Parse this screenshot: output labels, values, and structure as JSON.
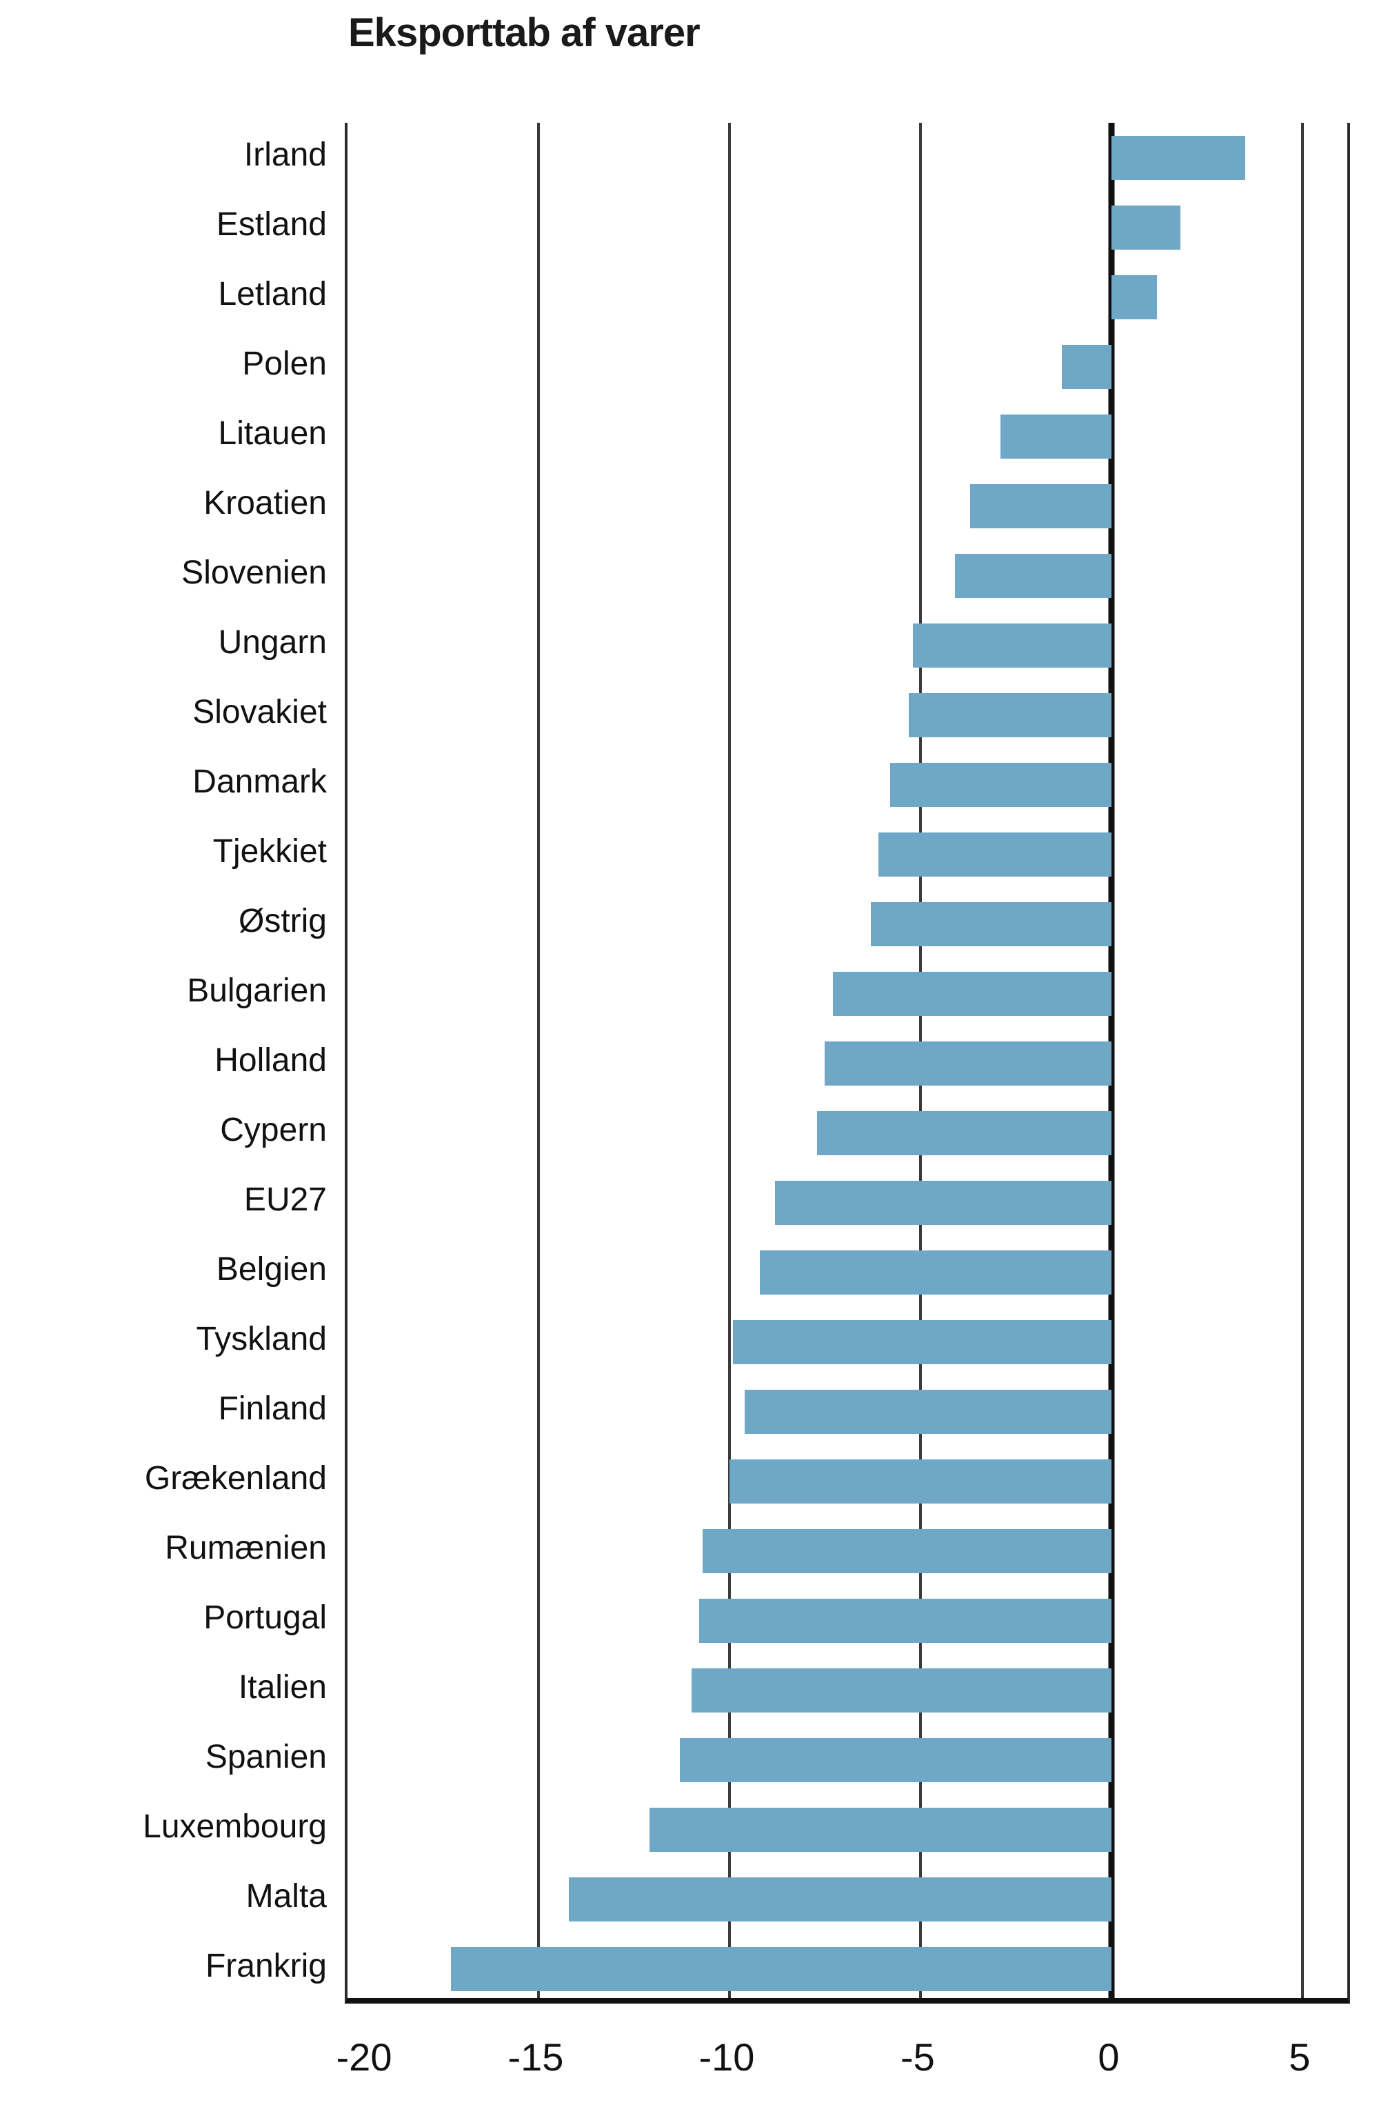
{
  "title": "Eksporttab af varer",
  "chart_data": {
    "type": "bar",
    "orientation": "horizontal",
    "title": "Eksporttab af varer",
    "xlabel": "",
    "ylabel": "",
    "categories": [
      "Irland",
      "Estland",
      "Letland",
      "Polen",
      "Litauen",
      "Kroatien",
      "Slovenien",
      "Ungarn",
      "Slovakiet",
      "Danmark",
      "Tjekkiet",
      "Østrig",
      "Bulgarien",
      "Holland",
      "Cypern",
      "EU27",
      "Belgien",
      "Tyskland",
      "Finland",
      "Grækenland",
      "Rumænien",
      "Portugal",
      "Italien",
      "Spanien",
      "Luxembourg",
      "Malta",
      "Frankrig"
    ],
    "values": [
      3.5,
      1.8,
      1.2,
      -1.3,
      -2.9,
      -3.7,
      -4.1,
      -5.2,
      -5.3,
      -5.8,
      -6.1,
      -6.3,
      -7.3,
      -7.5,
      -7.7,
      -8.8,
      -9.2,
      -9.9,
      -9.6,
      -10.0,
      -10.7,
      -10.8,
      -11.0,
      -11.3,
      -12.1,
      -14.2,
      -17.3
    ],
    "xlim": [
      -20,
      6.32
    ],
    "xticks": [
      -20,
      -15,
      -10,
      -5,
      0,
      5
    ],
    "xtick_labels": [
      "-20",
      "-15",
      "-10",
      "-5",
      "0",
      "5"
    ],
    "gridlines": [
      -15,
      -10,
      -5,
      5
    ],
    "zero_line": 0,
    "grid_on": true,
    "legend": "none",
    "bar_color": "#6FA7C7",
    "axis_color": "#111111"
  }
}
